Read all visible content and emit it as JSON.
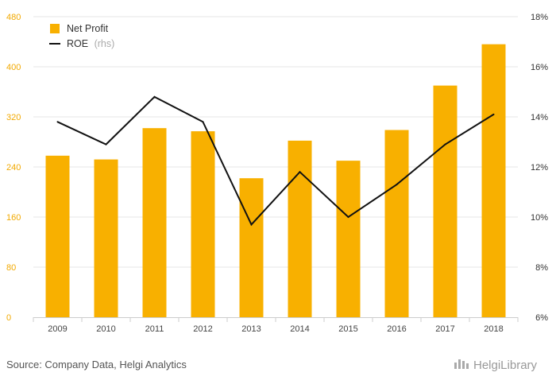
{
  "chart_data": {
    "type": "bar",
    "categories": [
      "2009",
      "2010",
      "2011",
      "2012",
      "2013",
      "2014",
      "2015",
      "2016",
      "2017",
      "2018"
    ],
    "series": [
      {
        "name": "Net Profit",
        "type": "bar",
        "axis": "left",
        "color": "#f8b000",
        "values": [
          258,
          252,
          302,
          297,
          222,
          282,
          250,
          299,
          370,
          436
        ]
      },
      {
        "name": "ROE",
        "name_suffix": "(rhs)",
        "type": "line",
        "axis": "right",
        "color": "#111111",
        "values": [
          13.8,
          12.9,
          14.8,
          13.8,
          9.7,
          11.8,
          10.0,
          11.3,
          12.9,
          14.1
        ]
      }
    ],
    "y_left": {
      "min": 0,
      "max": 480,
      "ticks": [
        "0",
        "80",
        "160",
        "240",
        "320",
        "400",
        "480"
      ],
      "color": "#f2a900"
    },
    "y_right": {
      "min": 6,
      "max": 18,
      "ticks": [
        "6%",
        "8%",
        "10%",
        "12%",
        "14%",
        "16%",
        "18%"
      ]
    },
    "grid": true,
    "legend_position": "top-left"
  },
  "source": "Source: Company Data, Helgi Analytics",
  "brand": "HelgiLibrary"
}
